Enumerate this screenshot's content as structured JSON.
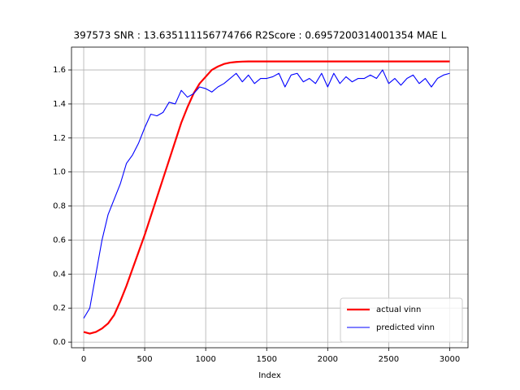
{
  "chart_data": {
    "type": "line",
    "title": "397573  SNR : 13.635111156774766 R2Score : 0.6957200314001354 MAE L",
    "xlabel": "Index",
    "x": [
      0,
      50,
      100,
      150,
      200,
      250,
      300,
      350,
      400,
      450,
      500,
      550,
      600,
      650,
      700,
      750,
      800,
      850,
      900,
      950,
      1000,
      1050,
      1100,
      1150,
      1200,
      1250,
      1300,
      1350,
      1400,
      1450,
      1500,
      1550,
      1600,
      1650,
      1700,
      1750,
      1800,
      1850,
      1900,
      1950,
      2000,
      2050,
      2100,
      2150,
      2200,
      2250,
      2300,
      2350,
      2400,
      2450,
      2500,
      2550,
      2600,
      2650,
      2700,
      2750,
      2800,
      2850,
      2900,
      2950,
      3000
    ],
    "series": [
      {
        "name": "actual vinn",
        "color": "#ff0000",
        "width": 2,
        "values": [
          0.06,
          0.05,
          0.06,
          0.08,
          0.11,
          0.16,
          0.24,
          0.33,
          0.43,
          0.53,
          0.63,
          0.74,
          0.85,
          0.96,
          1.07,
          1.18,
          1.29,
          1.38,
          1.46,
          1.52,
          1.56,
          1.6,
          1.62,
          1.635,
          1.643,
          1.647,
          1.649,
          1.65,
          1.65,
          1.65,
          1.65,
          1.65,
          1.65,
          1.65,
          1.65,
          1.65,
          1.65,
          1.65,
          1.65,
          1.65,
          1.65,
          1.65,
          1.65,
          1.65,
          1.65,
          1.65,
          1.65,
          1.65,
          1.65,
          1.65,
          1.65,
          1.65,
          1.65,
          1.65,
          1.65,
          1.65,
          1.65,
          1.65,
          1.65,
          1.65,
          1.65
        ]
      },
      {
        "name": "predicted vinn",
        "color": "#0000ff",
        "width": 1,
        "values": [
          0.14,
          0.2,
          0.4,
          0.6,
          0.75,
          0.84,
          0.93,
          1.05,
          1.1,
          1.17,
          1.26,
          1.34,
          1.33,
          1.35,
          1.41,
          1.4,
          1.48,
          1.44,
          1.46,
          1.5,
          1.49,
          1.47,
          1.5,
          1.52,
          1.55,
          1.58,
          1.53,
          1.57,
          1.52,
          1.55,
          1.55,
          1.56,
          1.58,
          1.5,
          1.57,
          1.58,
          1.53,
          1.55,
          1.52,
          1.58,
          1.5,
          1.58,
          1.52,
          1.56,
          1.53,
          1.55,
          1.55,
          1.57,
          1.55,
          1.6,
          1.52,
          1.55,
          1.51,
          1.55,
          1.57,
          1.52,
          1.55,
          1.5,
          1.55,
          1.57,
          1.58
        ]
      }
    ],
    "xlim": [
      -100,
      3150
    ],
    "ylim": [
      -0.033,
      1.734
    ],
    "xticks": [
      0,
      500,
      1000,
      1500,
      2000,
      2500,
      3000
    ],
    "yticks": [
      {
        "value": 0,
        "label": "0.0"
      },
      0.2,
      0.4,
      0.6,
      0.8,
      {
        "value": 1,
        "label": "1.0"
      },
      1.2,
      1.4,
      1.6
    ],
    "grid": true,
    "legend": "lower right"
  }
}
